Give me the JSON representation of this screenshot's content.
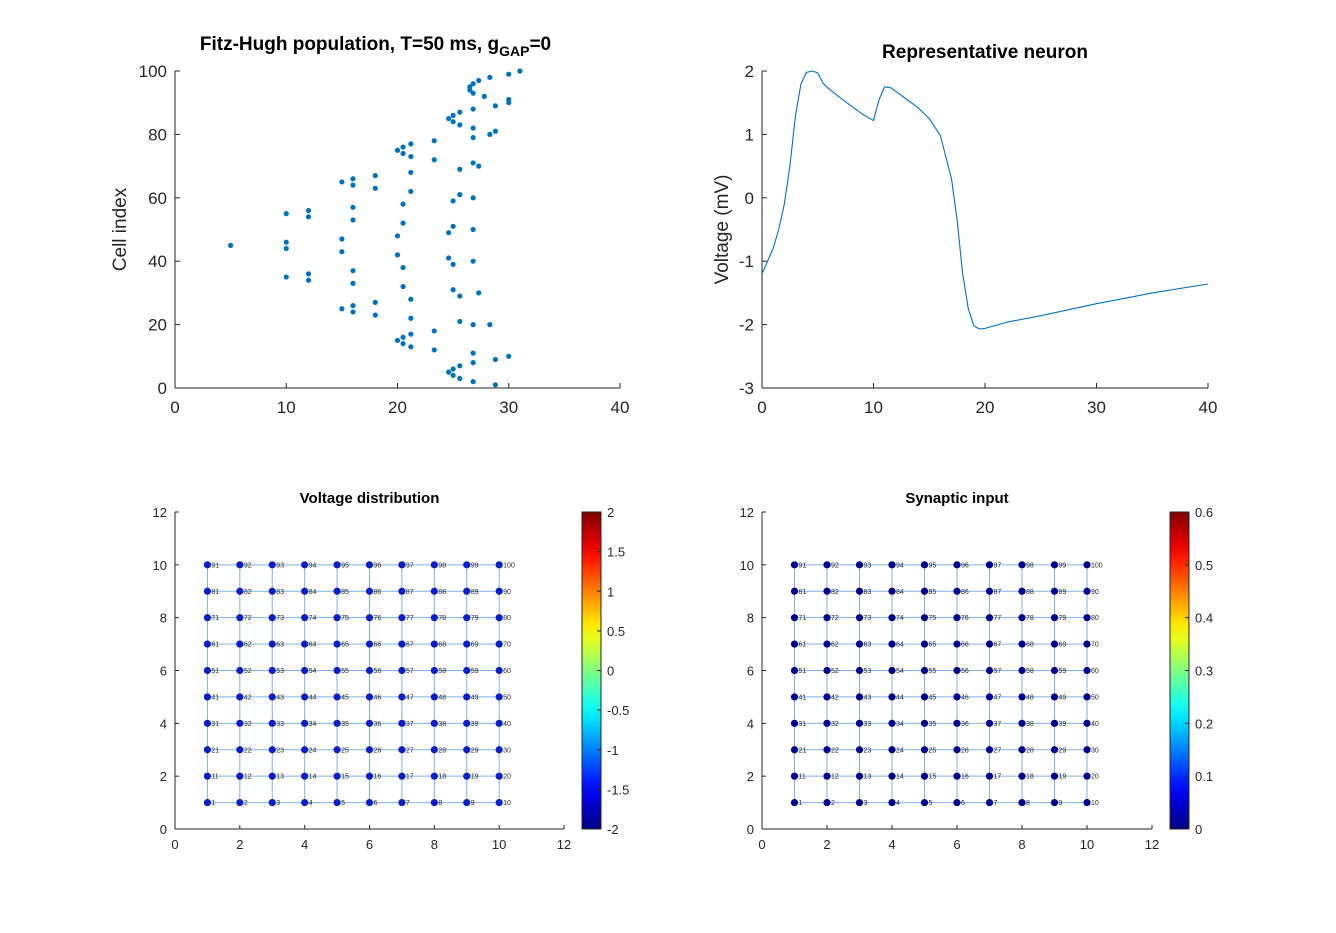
{
  "chart_data": [
    {
      "id": "raster",
      "type": "scatter",
      "title": "Fitz-Hugh population, T=50 ms, g",
      "title_sub": "GAP",
      "title_tail": "=0",
      "xlabel": "",
      "ylabel": "Cell index",
      "xlim": [
        0,
        40
      ],
      "ylim": [
        0,
        100
      ],
      "xticks": [
        0,
        10,
        20,
        30,
        40
      ],
      "yticks": [
        0,
        20,
        40,
        60,
        80,
        100
      ],
      "color": "#0072bd",
      "points": [
        [
          5,
          45
        ],
        [
          10,
          55
        ],
        [
          10,
          46
        ],
        [
          10,
          44
        ],
        [
          10,
          35
        ],
        [
          12,
          56
        ],
        [
          12,
          54
        ],
        [
          12,
          36
        ],
        [
          12,
          34
        ],
        [
          15,
          65
        ],
        [
          15,
          47
        ],
        [
          15,
          43
        ],
        [
          15,
          25
        ],
        [
          16,
          66
        ],
        [
          16,
          64
        ],
        [
          16,
          57
        ],
        [
          16,
          53
        ],
        [
          16,
          37
        ],
        [
          16,
          33
        ],
        [
          16,
          26
        ],
        [
          16,
          24
        ],
        [
          18,
          67
        ],
        [
          18,
          63
        ],
        [
          18,
          27
        ],
        [
          18,
          23
        ],
        [
          20,
          75
        ],
        [
          20,
          48
        ],
        [
          20,
          42
        ],
        [
          20,
          15
        ],
        [
          20.5,
          76
        ],
        [
          20.5,
          74
        ],
        [
          20.5,
          58
        ],
        [
          20.5,
          52
        ],
        [
          20.5,
          38
        ],
        [
          20.5,
          32
        ],
        [
          20.5,
          16
        ],
        [
          20.5,
          14
        ],
        [
          21.2,
          77
        ],
        [
          21.2,
          73
        ],
        [
          21.2,
          68
        ],
        [
          21.2,
          62
        ],
        [
          21.2,
          28
        ],
        [
          21.2,
          22
        ],
        [
          21.2,
          17
        ],
        [
          21.2,
          13
        ],
        [
          23.3,
          78
        ],
        [
          23.3,
          72
        ],
        [
          23.3,
          18
        ],
        [
          23.3,
          12
        ],
        [
          24.6,
          85
        ],
        [
          24.6,
          49
        ],
        [
          24.6,
          41
        ],
        [
          24.6,
          5
        ],
        [
          25,
          86
        ],
        [
          25,
          84
        ],
        [
          25,
          59
        ],
        [
          25,
          51
        ],
        [
          25,
          39
        ],
        [
          25,
          31
        ],
        [
          25,
          6
        ],
        [
          25,
          4
        ],
        [
          25.6,
          87
        ],
        [
          25.6,
          83
        ],
        [
          25.6,
          69
        ],
        [
          25.6,
          61
        ],
        [
          25.6,
          29
        ],
        [
          25.6,
          21
        ],
        [
          25.6,
          7
        ],
        [
          25.6,
          3
        ],
        [
          26.5,
          95
        ],
        [
          26.5,
          94
        ],
        [
          26.8,
          96
        ],
        [
          26.8,
          93
        ],
        [
          26.8,
          88
        ],
        [
          26.8,
          82
        ],
        [
          26.8,
          79
        ],
        [
          26.8,
          71
        ],
        [
          26.8,
          60
        ],
        [
          26.8,
          50
        ],
        [
          26.8,
          40
        ],
        [
          26.8,
          20
        ],
        [
          26.8,
          11
        ],
        [
          26.8,
          8
        ],
        [
          26.8,
          2
        ],
        [
          27.3,
          97
        ],
        [
          27.3,
          70
        ],
        [
          27.3,
          30
        ],
        [
          27.8,
          92
        ],
        [
          28.3,
          98
        ],
        [
          28.3,
          80
        ],
        [
          28.3,
          20
        ],
        [
          28.8,
          89
        ],
        [
          28.8,
          81
        ],
        [
          28.8,
          9
        ],
        [
          28.8,
          1
        ],
        [
          30,
          99
        ],
        [
          30,
          91
        ],
        [
          30,
          90
        ],
        [
          30,
          10
        ],
        [
          31,
          100
        ]
      ]
    },
    {
      "id": "trace",
      "type": "line",
      "title": "Representative neuron",
      "xlabel": "",
      "ylabel": "Voltage (mV)",
      "xlim": [
        0,
        40
      ],
      "ylim": [
        -3,
        2
      ],
      "xticks": [
        0,
        10,
        20,
        30,
        40
      ],
      "yticks": [
        -3,
        -2,
        -1,
        0,
        1,
        2
      ],
      "color": "#0072bd",
      "x": [
        0,
        0.5,
        1,
        1.5,
        2,
        2.5,
        3,
        3.5,
        4,
        4.5,
        5,
        5.5,
        6,
        7,
        8,
        9,
        9.5,
        10,
        10.5,
        11,
        11.5,
        12,
        13,
        14,
        15,
        16,
        17,
        17.5,
        18,
        18.5,
        19,
        19.5,
        20,
        22,
        25,
        30,
        35,
        40
      ],
      "y": [
        -1.2,
        -1.0,
        -0.8,
        -0.5,
        -0.1,
        0.5,
        1.3,
        1.8,
        1.98,
        2.0,
        1.97,
        1.8,
        1.72,
        1.58,
        1.45,
        1.32,
        1.27,
        1.22,
        1.55,
        1.75,
        1.74,
        1.68,
        1.55,
        1.42,
        1.25,
        0.98,
        0.3,
        -0.35,
        -1.2,
        -1.75,
        -2.02,
        -2.07,
        -2.06,
        -1.96,
        -1.86,
        -1.67,
        -1.5,
        -1.36
      ]
    },
    {
      "id": "grid_voltage",
      "type": "scatter",
      "title": "Voltage distribution",
      "xlim": [
        0,
        12
      ],
      "ylim": [
        0,
        12
      ],
      "xticks": [
        0,
        2,
        4,
        6,
        8,
        10,
        12
      ],
      "yticks": [
        0,
        2,
        4,
        6,
        8,
        10,
        12
      ],
      "grid_size": 10,
      "node_color": "#0a1fc8",
      "colorbar": {
        "min": -2,
        "max": 2,
        "ticks": [
          2,
          1.5,
          1,
          0.5,
          0,
          -0.5,
          -1,
          -1.5,
          -2
        ],
        "labels": [
          "2",
          "1.5",
          "1",
          "0.5",
          "0",
          "-0.5",
          "-1",
          "-1.5",
          "-2"
        ]
      }
    },
    {
      "id": "grid_synaptic",
      "type": "scatter",
      "title": "Synaptic input",
      "xlim": [
        0,
        12
      ],
      "ylim": [
        0,
        12
      ],
      "xticks": [
        0,
        2,
        4,
        6,
        8,
        10,
        12
      ],
      "yticks": [
        0,
        2,
        4,
        6,
        8,
        10,
        12
      ],
      "grid_size": 10,
      "node_color": "#00008f",
      "colorbar": {
        "min": 0,
        "max": 0.6,
        "ticks": [
          0.6,
          0.5,
          0.4,
          0.3,
          0.2,
          0.1,
          0
        ],
        "labels": [
          "0.6",
          "0.5",
          "0.4",
          "0.3",
          "0.2",
          "0.1",
          "0"
        ]
      }
    }
  ]
}
